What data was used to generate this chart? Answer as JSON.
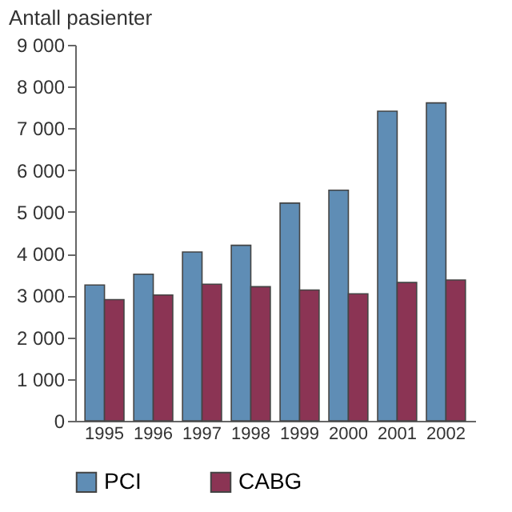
{
  "chart_data": {
    "type": "bar",
    "ylabel": "Antall pasienter",
    "categories": [
      "1995",
      "1996",
      "1997",
      "1998",
      "1999",
      "2000",
      "2001",
      "2002"
    ],
    "series": [
      {
        "name": "PCI",
        "color": "#5f8db5",
        "values": [
          3250,
          3510,
          4040,
          4200,
          5210,
          5520,
          7410,
          7610
        ]
      },
      {
        "name": "CABG",
        "color": "#8b3454",
        "values": [
          2900,
          3010,
          3270,
          3210,
          3130,
          3040,
          3310,
          3370
        ]
      }
    ],
    "ylim": [
      0,
      9000
    ],
    "yticks": [
      0,
      {
        "value": 1000,
        "label": "1 000"
      },
      {
        "value": 2000,
        "label": "2 000"
      },
      {
        "value": 3000,
        "label": "3 000"
      },
      {
        "value": 4000,
        "label": "4 000"
      },
      {
        "value": 5000,
        "label": "5 000"
      },
      {
        "value": 6000,
        "label": "6 000"
      },
      {
        "value": 7000,
        "label": "7 000"
      },
      {
        "value": 8000,
        "label": "8 000"
      },
      {
        "value": 9000,
        "label": "9 000"
      }
    ],
    "grid": false,
    "legend": "bottom"
  }
}
